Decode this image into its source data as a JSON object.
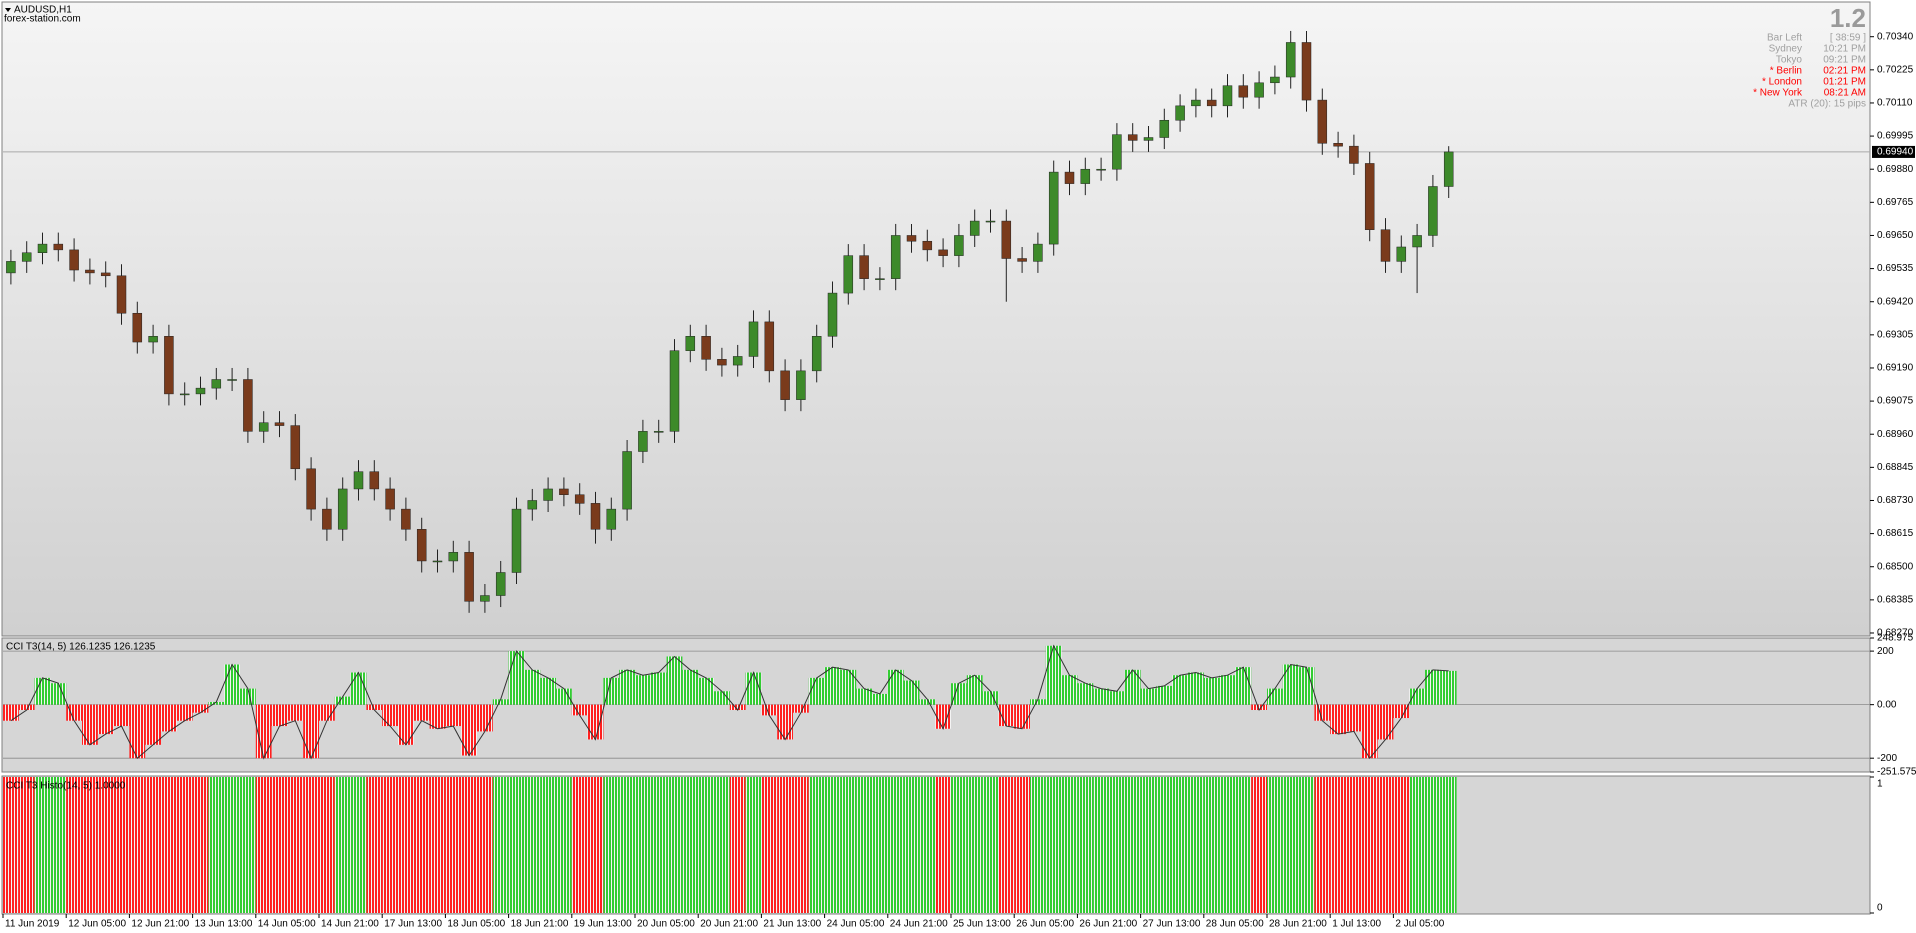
{
  "header": {
    "symbol": "AUDUSD,H1",
    "site": "forex-station.com"
  },
  "info": {
    "version": "1.2",
    "atr": "ATR (20): 15 pips",
    "rows": [
      {
        "name": "Bar Left",
        "value": "[ 38:59 ]",
        "color": "#a0a0a0"
      },
      {
        "name": "Sydney",
        "value": "10:21 PM",
        "color": "#a0a0a0"
      },
      {
        "name": "Tokyo",
        "value": "09:21 PM",
        "color": "#a0a0a0"
      },
      {
        "name": "* Berlin",
        "value": "02:21 PM",
        "color": "#ff0000"
      },
      {
        "name": "* London",
        "value": "01:21 PM",
        "color": "#ff0000"
      },
      {
        "name": "* New York",
        "value": "08:21 AM",
        "color": "#ff0000"
      }
    ]
  },
  "chart_data": [
    {
      "type": "candlestick",
      "bull_color": "#3d8a2a",
      "bear_color": "#7a3b1c",
      "wick_color": "#222222",
      "categories": [
        "11 Jun 2019",
        null,
        null,
        null,
        "12 Jun 05:00",
        null,
        null,
        null,
        "12 Jun 21:00",
        null,
        null,
        null,
        "13 Jun 13:00",
        null,
        null,
        null,
        "14 Jun 05:00",
        null,
        null,
        null,
        "14 Jun 21:00",
        null,
        null,
        null,
        "17 Jun 13:00",
        null,
        null,
        null,
        "18 Jun 05:00",
        null,
        null,
        null,
        "18 Jun 21:00",
        null,
        null,
        null,
        "19 Jun 13:00",
        null,
        null,
        null,
        "20 Jun 05:00",
        null,
        null,
        null,
        "20 Jun 21:00",
        null,
        null,
        null,
        "21 Jun 13:00",
        null,
        null,
        null,
        "24 Jun 05:00",
        null,
        null,
        null,
        "24 Jun 21:00",
        null,
        null,
        null,
        "25 Jun 13:00",
        null,
        null,
        null,
        "26 Jun 05:00",
        null,
        null,
        null,
        "26 Jun 21:00",
        null,
        null,
        null,
        "27 Jun 13:00",
        null,
        null,
        null,
        "28 Jun 05:00",
        null,
        null,
        null,
        "28 Jun 21:00",
        null,
        null,
        null,
        "1 Jul 13:00",
        null,
        null,
        null,
        "2 Jul 05:00",
        null,
        null,
        null
      ],
      "open": [
        0.6952,
        0.6956,
        0.6959,
        0.6962,
        0.696,
        0.6953,
        0.6952,
        0.6951,
        0.6938,
        0.6928,
        0.693,
        0.691,
        0.691,
        0.6912,
        0.6915,
        0.6915,
        0.6897,
        0.69,
        0.6899,
        0.6884,
        0.687,
        0.6863,
        0.6877,
        0.6883,
        0.6877,
        0.687,
        0.6863,
        0.6852,
        0.6852,
        0.6855,
        0.6838,
        0.684,
        0.6848,
        0.687,
        0.6873,
        0.6877,
        0.6875,
        0.6872,
        0.6863,
        0.687,
        0.689,
        0.6897,
        0.6897,
        0.6925,
        0.693,
        0.6922,
        0.692,
        0.6923,
        0.6935,
        0.6918,
        0.6908,
        0.6918,
        0.693,
        0.6945,
        0.6958,
        0.695,
        0.695,
        0.6965,
        0.6963,
        0.696,
        0.6958,
        0.6965,
        0.697,
        0.697,
        0.6957,
        0.6956,
        0.6962,
        0.6987,
        0.6983,
        0.6988,
        0.6988,
        0.7,
        0.6998,
        0.6999,
        0.7005,
        0.701,
        0.7012,
        0.701,
        0.7017,
        0.7013,
        0.7018,
        0.702,
        0.7032,
        0.7012,
        0.6997,
        0.6996,
        0.699,
        0.6967,
        0.6956,
        0.6961,
        0.6965,
        0.6982
      ],
      "high": [
        0.696,
        0.6963,
        0.6966,
        0.6966,
        0.6964,
        0.6957,
        0.6956,
        0.6955,
        0.6942,
        0.6934,
        0.6934,
        0.6914,
        0.6916,
        0.6919,
        0.6919,
        0.6919,
        0.6904,
        0.6904,
        0.6903,
        0.6888,
        0.6874,
        0.6881,
        0.6887,
        0.6887,
        0.6881,
        0.6874,
        0.6867,
        0.6856,
        0.6859,
        0.6859,
        0.6844,
        0.6852,
        0.6874,
        0.6877,
        0.6881,
        0.6881,
        0.6879,
        0.6876,
        0.6874,
        0.6894,
        0.6901,
        0.6901,
        0.6929,
        0.6934,
        0.6934,
        0.6926,
        0.6927,
        0.6939,
        0.6939,
        0.6922,
        0.6922,
        0.6934,
        0.6949,
        0.6962,
        0.6962,
        0.6954,
        0.6969,
        0.6969,
        0.6967,
        0.6964,
        0.6969,
        0.6974,
        0.6974,
        0.6974,
        0.6961,
        0.6966,
        0.6991,
        0.6991,
        0.6992,
        0.6992,
        0.7004,
        0.7004,
        0.7003,
        0.7009,
        0.7014,
        0.7016,
        0.7016,
        0.7021,
        0.7021,
        0.7022,
        0.7024,
        0.7036,
        0.7036,
        0.7016,
        0.7001,
        0.7,
        0.6994,
        0.6971,
        0.6965,
        0.6969,
        0.6986,
        0.6996
      ],
      "low": [
        0.6948,
        0.6952,
        0.6955,
        0.6956,
        0.6949,
        0.6948,
        0.6947,
        0.6934,
        0.6924,
        0.6924,
        0.6906,
        0.6906,
        0.6906,
        0.6908,
        0.6911,
        0.6893,
        0.6893,
        0.6895,
        0.688,
        0.6866,
        0.6859,
        0.6859,
        0.6873,
        0.6873,
        0.6866,
        0.6859,
        0.6848,
        0.6848,
        0.6848,
        0.6834,
        0.6834,
        0.6836,
        0.6844,
        0.6866,
        0.6869,
        0.6871,
        0.6868,
        0.6858,
        0.6859,
        0.6866,
        0.6886,
        0.6893,
        0.6893,
        0.6921,
        0.6918,
        0.6916,
        0.6916,
        0.6919,
        0.6914,
        0.6904,
        0.6904,
        0.6914,
        0.6926,
        0.6941,
        0.6946,
        0.6946,
        0.6946,
        0.6959,
        0.6956,
        0.6954,
        0.6954,
        0.6961,
        0.6966,
        0.6942,
        0.6952,
        0.6952,
        0.6958,
        0.6979,
        0.6979,
        0.6984,
        0.6984,
        0.6994,
        0.6994,
        0.6995,
        0.7001,
        0.7006,
        0.7006,
        0.7006,
        0.7009,
        0.7009,
        0.7014,
        0.7016,
        0.7008,
        0.6993,
        0.6992,
        0.6986,
        0.6963,
        0.6952,
        0.6952,
        0.6945,
        0.6961,
        0.6978
      ],
      "close": [
        0.6956,
        0.6959,
        0.6962,
        0.696,
        0.6953,
        0.6952,
        0.6951,
        0.6938,
        0.6928,
        0.693,
        0.691,
        0.691,
        0.6912,
        0.6915,
        0.6915,
        0.6897,
        0.69,
        0.6899,
        0.6884,
        0.687,
        0.6863,
        0.6877,
        0.6883,
        0.6877,
        0.687,
        0.6863,
        0.6852,
        0.6852,
        0.6855,
        0.6838,
        0.684,
        0.6848,
        0.687,
        0.6873,
        0.6877,
        0.6875,
        0.6872,
        0.6863,
        0.687,
        0.689,
        0.6897,
        0.6897,
        0.6925,
        0.693,
        0.6922,
        0.692,
        0.6923,
        0.6935,
        0.6918,
        0.6908,
        0.6918,
        0.693,
        0.6945,
        0.6958,
        0.695,
        0.695,
        0.6965,
        0.6963,
        0.696,
        0.6958,
        0.6965,
        0.697,
        0.697,
        0.6957,
        0.6956,
        0.6962,
        0.6987,
        0.6983,
        0.6988,
        0.6988,
        0.7,
        0.6998,
        0.6999,
        0.7005,
        0.701,
        0.7012,
        0.701,
        0.7017,
        0.7013,
        0.7018,
        0.702,
        0.7032,
        0.7012,
        0.6997,
        0.6996,
        0.699,
        0.6967,
        0.6956,
        0.6961,
        0.6965,
        0.6982,
        0.6994
      ],
      "ylim": [
        0.68263,
        0.70457
      ],
      "yticks": [
        {
          "value": 0.7034,
          "label": "0.70340"
        },
        {
          "value": 0.70225,
          "label": "0.70225"
        },
        {
          "value": 0.7011,
          "label": "0.70110"
        },
        {
          "value": 0.69995,
          "label": "0.69995"
        },
        {
          "value": 0.6988,
          "label": "0.69880"
        },
        {
          "value": 0.69765,
          "label": "0.69765"
        },
        {
          "value": 0.6965,
          "label": "0.69650"
        },
        {
          "value": 0.69535,
          "label": "0.69535"
        },
        {
          "value": 0.6942,
          "label": "0.69420"
        },
        {
          "value": 0.69305,
          "label": "0.69305"
        },
        {
          "value": 0.6919,
          "label": "0.69190"
        },
        {
          "value": 0.69075,
          "label": "0.69075"
        },
        {
          "value": 0.6896,
          "label": "0.68960"
        },
        {
          "value": 0.68845,
          "label": "0.68845"
        },
        {
          "value": 0.6873,
          "label": "0.68730"
        },
        {
          "value": 0.68615,
          "label": "0.68615"
        },
        {
          "value": 0.685,
          "label": "0.68500"
        },
        {
          "value": 0.68385,
          "label": "0.68385"
        },
        {
          "value": 0.6827,
          "label": "0.68270"
        }
      ],
      "current_price": {
        "value": 0.6994,
        "label": "0.69940"
      }
    },
    {
      "type": "bar",
      "title": "CCI T3(14, 5) 126.1235 126.1235",
      "up_color": "#32cd32",
      "down_color": "#ff2020",
      "line_color": "#333333",
      "values": [
        -60,
        -20,
        100,
        80,
        -60,
        -150,
        -110,
        -80,
        -200,
        -150,
        -100,
        -60,
        -30,
        10,
        150,
        60,
        -200,
        -80,
        -60,
        -200,
        -60,
        30,
        120,
        -20,
        -80,
        -150,
        -60,
        -90,
        -80,
        -190,
        -100,
        20,
        200,
        130,
        100,
        60,
        -40,
        -130,
        100,
        130,
        110,
        120,
        180,
        130,
        100,
        50,
        -20,
        120,
        -40,
        -130,
        -30,
        100,
        140,
        130,
        60,
        40,
        130,
        90,
        20,
        -90,
        80,
        110,
        50,
        -80,
        -90,
        20,
        220,
        110,
        80,
        60,
        50,
        130,
        60,
        70,
        110,
        120,
        100,
        110,
        140,
        -20,
        60,
        150,
        140,
        -60,
        -110,
        -100,
        -200,
        -130,
        -50,
        60,
        130,
        126.1235
      ],
      "ylim": [
        -251.5751,
        248.975
      ],
      "yticks": [
        248.975,
        200,
        {
          "value": 0,
          "label": "0.00"
        },
        -200,
        -251.5751
      ],
      "levels": [
        200,
        0,
        -200
      ]
    },
    {
      "type": "histogram",
      "title": "CCI T3 Histo(14, 5) 1.0000",
      "values": [
        1,
        1,
        1,
        1,
        1,
        1,
        1,
        1,
        1,
        1,
        1,
        1,
        1,
        1,
        1,
        1,
        1,
        1,
        1,
        1,
        1,
        1,
        1,
        1,
        1,
        1,
        1,
        1,
        1,
        1,
        1,
        1,
        1,
        1,
        1,
        1,
        1,
        1,
        1,
        1,
        1,
        1,
        1,
        1,
        1,
        1,
        1,
        1,
        1,
        1,
        1,
        1,
        1,
        1,
        1,
        1,
        1,
        1,
        1,
        1,
        1,
        1,
        1,
        1,
        1,
        1,
        1,
        1,
        1,
        1,
        1,
        1,
        1,
        1,
        1,
        1,
        1,
        1,
        1,
        1,
        1,
        1,
        1,
        1,
        1,
        1,
        1,
        1,
        1,
        1,
        1,
        1
      ],
      "ylim": [
        0,
        1
      ],
      "yticks": [
        1,
        0
      ]
    }
  ]
}
